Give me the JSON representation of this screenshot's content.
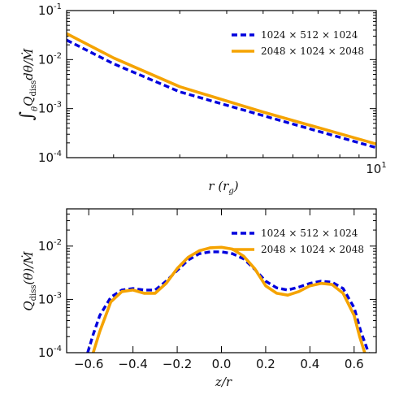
{
  "chart_data": [
    {
      "type": "line",
      "xscale": "log",
      "yscale": "log",
      "xlim": [
        1.5,
        10
      ],
      "ylim": [
        0.0001,
        0.1
      ],
      "xticks": [
        {
          "value": 10,
          "label": "10",
          "sup": "1"
        }
      ],
      "yticks": [
        {
          "value": 0.1,
          "label": "10",
          "sup": "-1"
        },
        {
          "value": 0.01,
          "label": "10",
          "sup": "-2"
        },
        {
          "value": 0.001,
          "label": "10",
          "sup": "-3"
        },
        {
          "value": 0.0001,
          "label": "10",
          "sup": "-4"
        }
      ],
      "xlabel": "r (r_g)",
      "ylabel": "∫_θ Q_diss dθ / Ṁ",
      "legend_position": "top-right",
      "series": [
        {
          "name": "1024 × 512 × 1024",
          "color": "#0000dd",
          "style": "dashed",
          "x": [
            1.5,
            2,
            3,
            5,
            10
          ],
          "y": [
            0.025,
            0.0082,
            0.0022,
            0.00072,
            0.00016
          ]
        },
        {
          "name": "2048 × 1024 × 2048",
          "color": "#f5a300",
          "style": "solid",
          "x": [
            1.5,
            2,
            3,
            5,
            10
          ],
          "y": [
            0.034,
            0.0108,
            0.0028,
            0.00085,
            0.00019
          ]
        }
      ]
    },
    {
      "type": "line",
      "yscale": "log",
      "xlim": [
        -0.7,
        0.7
      ],
      "ylim": [
        0.0001,
        0.05
      ],
      "xticks": [
        {
          "value": -0.6,
          "label": "−0.6"
        },
        {
          "value": -0.4,
          "label": "−0.4"
        },
        {
          "value": -0.2,
          "label": "−0.2"
        },
        {
          "value": 0.0,
          "label": "0.0"
        },
        {
          "value": 0.2,
          "label": "0.2"
        },
        {
          "value": 0.4,
          "label": "0.4"
        },
        {
          "value": 0.6,
          "label": "0.6"
        }
      ],
      "yticks": [
        {
          "value": 0.01,
          "label": "10",
          "sup": "-2"
        },
        {
          "value": 0.001,
          "label": "10",
          "sup": "-3"
        },
        {
          "value": 0.0001,
          "label": "10",
          "sup": "-4"
        }
      ],
      "xlabel": "z/r",
      "ylabel": "Q_diss(θ)/Ṁ",
      "legend_position": "top-right",
      "series": [
        {
          "name": "1024 × 512 × 1024",
          "color": "#0000dd",
          "style": "dashed",
          "x": [
            -0.605,
            -0.58,
            -0.55,
            -0.5,
            -0.45,
            -0.4,
            -0.35,
            -0.3,
            -0.25,
            -0.2,
            -0.15,
            -0.1,
            -0.05,
            0.0,
            0.05,
            0.1,
            0.15,
            0.2,
            0.25,
            0.3,
            0.35,
            0.4,
            0.45,
            0.5,
            0.55,
            0.6,
            0.63,
            0.665
          ],
          "y": [
            0.0001,
            0.00022,
            0.0005,
            0.0011,
            0.0015,
            0.0016,
            0.0015,
            0.0015,
            0.0022,
            0.0035,
            0.0055,
            0.0072,
            0.0078,
            0.0078,
            0.0072,
            0.0058,
            0.0037,
            0.0022,
            0.00165,
            0.0015,
            0.0017,
            0.002,
            0.0022,
            0.0021,
            0.0016,
            0.0007,
            0.00025,
            0.0001
          ]
        },
        {
          "name": "2048 × 1024 × 2048",
          "color": "#f5a300",
          "style": "solid",
          "x": [
            -0.58,
            -0.55,
            -0.5,
            -0.45,
            -0.4,
            -0.35,
            -0.3,
            -0.25,
            -0.2,
            -0.15,
            -0.1,
            -0.05,
            0.0,
            0.05,
            0.1,
            0.15,
            0.2,
            0.25,
            0.3,
            0.35,
            0.4,
            0.45,
            0.5,
            0.55,
            0.6,
            0.625,
            0.648
          ],
          "y": [
            0.0001,
            0.00025,
            0.0009,
            0.0014,
            0.0015,
            0.0013,
            0.0013,
            0.002,
            0.0038,
            0.0062,
            0.0082,
            0.0093,
            0.0095,
            0.0088,
            0.0065,
            0.0038,
            0.0018,
            0.0013,
            0.0012,
            0.0014,
            0.0018,
            0.002,
            0.0019,
            0.0013,
            0.0005,
            0.0002,
            0.0001
          ]
        }
      ]
    }
  ]
}
